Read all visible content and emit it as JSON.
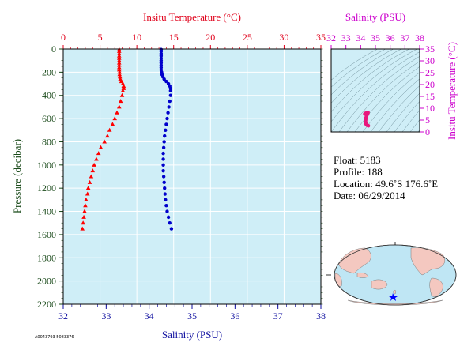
{
  "chart_data": [
    {
      "type": "scatter",
      "top_axis_label": "Insitu Temperature (°C)",
      "bottom_axis_label": "Salinity (PSU)",
      "ylabel": "Pressure (decibar)",
      "temperature_ticks": [
        "0",
        "5",
        "10",
        "15",
        "20",
        "25",
        "30",
        "35"
      ],
      "temperature_range": [
        0,
        35
      ],
      "salinity_ticks": [
        "32",
        "33",
        "34",
        "35",
        "36",
        "37",
        "38"
      ],
      "salinity_range": [
        32,
        38
      ],
      "pressure_ticks": [
        "0",
        "200",
        "400",
        "600",
        "800",
        "1000",
        "1200",
        "1400",
        "1600",
        "1800",
        "2000",
        "2200"
      ],
      "pressure_range": [
        0,
        2200
      ],
      "y_reversed": true,
      "grid": true,
      "plot_background": "#cfeef7",
      "series": [
        {
          "variable": "temperature",
          "marker": "triangle",
          "color": "#ff0000",
          "points": [
            [
              7.6,
              5
            ],
            [
              7.6,
              20
            ],
            [
              7.6,
              40
            ],
            [
              7.6,
              60
            ],
            [
              7.6,
              80
            ],
            [
              7.6,
              100
            ],
            [
              7.6,
              120
            ],
            [
              7.6,
              140
            ],
            [
              7.6,
              160
            ],
            [
              7.6,
              180
            ],
            [
              7.65,
              200
            ],
            [
              7.65,
              220
            ],
            [
              7.7,
              240
            ],
            [
              7.75,
              260
            ],
            [
              7.9,
              280
            ],
            [
              8.1,
              300
            ],
            [
              8.2,
              320
            ],
            [
              8.2,
              340
            ],
            [
              8.1,
              360
            ],
            [
              8.0,
              400
            ],
            [
              7.8,
              450
            ],
            [
              7.6,
              500
            ],
            [
              7.3,
              550
            ],
            [
              7.0,
              600
            ],
            [
              6.7,
              650
            ],
            [
              6.3,
              700
            ],
            [
              6.0,
              750
            ],
            [
              5.6,
              800
            ],
            [
              5.1,
              850
            ],
            [
              4.8,
              900
            ],
            [
              4.5,
              950
            ],
            [
              4.2,
              1000
            ],
            [
              4.0,
              1050
            ],
            [
              3.8,
              1100
            ],
            [
              3.6,
              1150
            ],
            [
              3.4,
              1200
            ],
            [
              3.3,
              1250
            ],
            [
              3.1,
              1300
            ],
            [
              3.0,
              1350
            ],
            [
              2.9,
              1400
            ],
            [
              2.8,
              1450
            ],
            [
              2.7,
              1500
            ],
            [
              2.6,
              1550
            ]
          ]
        },
        {
          "variable": "salinity",
          "marker": "circle",
          "color": "#0000cc",
          "points": [
            [
              34.28,
              5
            ],
            [
              34.28,
              20
            ],
            [
              34.28,
              40
            ],
            [
              34.28,
              60
            ],
            [
              34.28,
              80
            ],
            [
              34.28,
              100
            ],
            [
              34.28,
              120
            ],
            [
              34.28,
              140
            ],
            [
              34.28,
              160
            ],
            [
              34.28,
              180
            ],
            [
              34.29,
              200
            ],
            [
              34.3,
              220
            ],
            [
              34.32,
              240
            ],
            [
              34.35,
              260
            ],
            [
              34.4,
              280
            ],
            [
              34.45,
              300
            ],
            [
              34.48,
              320
            ],
            [
              34.5,
              340
            ],
            [
              34.5,
              360
            ],
            [
              34.5,
              400
            ],
            [
              34.48,
              450
            ],
            [
              34.46,
              500
            ],
            [
              34.44,
              550
            ],
            [
              34.42,
              600
            ],
            [
              34.4,
              650
            ],
            [
              34.38,
              700
            ],
            [
              34.36,
              750
            ],
            [
              34.35,
              800
            ],
            [
              34.34,
              850
            ],
            [
              34.33,
              900
            ],
            [
              34.33,
              950
            ],
            [
              34.33,
              1000
            ],
            [
              34.33,
              1050
            ],
            [
              34.34,
              1100
            ],
            [
              34.35,
              1150
            ],
            [
              34.36,
              1200
            ],
            [
              34.37,
              1250
            ],
            [
              34.38,
              1300
            ],
            [
              34.4,
              1350
            ],
            [
              34.42,
              1400
            ],
            [
              34.45,
              1450
            ],
            [
              34.48,
              1500
            ],
            [
              34.52,
              1550
            ]
          ]
        }
      ]
    },
    {
      "type": "scatter",
      "top_axis_label": "Salinity (PSU)",
      "ylabel": "Insitu Temperature (°C)",
      "salinity_ticks": [
        "32",
        "33",
        "34",
        "35",
        "36",
        "37",
        "38"
      ],
      "salinity_range": [
        32,
        38
      ],
      "temperature_ticks": [
        "0",
        "5",
        "10",
        "15",
        "20",
        "25",
        "30",
        "35"
      ],
      "temperature_range": [
        0,
        35
      ],
      "plot_background": "#cfeef7",
      "series": [
        {
          "name": "",
          "color": "#e8177d",
          "points": [
            [
              34.28,
              7.6
            ],
            [
              34.3,
              7.7
            ],
            [
              34.35,
              7.9
            ],
            [
              34.45,
              8.1
            ],
            [
              34.5,
              8.2
            ],
            [
              34.48,
              7.8
            ],
            [
              34.44,
              7.3
            ],
            [
              34.4,
              6.7
            ],
            [
              34.36,
              6.0
            ],
            [
              34.34,
              5.1
            ],
            [
              34.33,
              4.5
            ],
            [
              34.33,
              4.0
            ],
            [
              34.35,
              3.6
            ],
            [
              34.37,
              3.3
            ],
            [
              34.4,
              3.0
            ],
            [
              34.45,
              2.8
            ],
            [
              34.52,
              2.6
            ]
          ]
        }
      ]
    }
  ],
  "info": {
    "float": "Float:  5183",
    "profile": "Profile:  188",
    "location": "Location:  49.6˚S  176.6˚E",
    "date": "Date:  06/29/2014"
  },
  "footer_code": "A0043793 5083376",
  "map": {
    "marker_color": "#0000ff",
    "land_color": "#f4c8c0",
    "ocean_color": "#bfe6f4"
  }
}
